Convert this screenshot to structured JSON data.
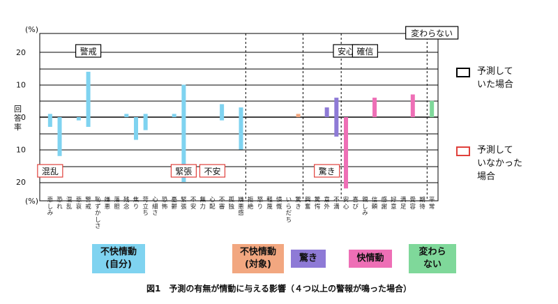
{
  "chart_data": {
    "type": "bar",
    "y_unit": "(%)",
    "y_axis_label": "回答率",
    "ylim_up": [
      0,
      20
    ],
    "ylim_down": [
      0,
      20
    ],
    "y_ticks": [
      20,
      10,
      0,
      10,
      20
    ],
    "caption": "図1　予測の有無が情動に与える影響（４つ以上の警報が鳴った場合）",
    "categories": [
      "悲しみ",
      "恐れ",
      "混乱",
      "悲哀",
      "警戒",
      "恥ずかしさ",
      "嫌悪",
      "落胆",
      "残念",
      "焦り",
      "苛立ち",
      "心細さ",
      "恐怖",
      "憂鬱",
      "緊張",
      "不安",
      "無力",
      "心配",
      "不審",
      "孤独",
      "嫌悪感",
      "拒絶",
      "怒り",
      "軽蔑",
      "憤慨",
      "いらだち",
      "驚き",
      "興奮",
      "驚愕",
      "意外",
      "不満",
      "安心",
      "喜び",
      "親しみ",
      "信頼",
      "感謝",
      "好意",
      "満足",
      "受容",
      "期待",
      "平常"
    ],
    "groups": [
      {
        "name": "不快情動\n(自分)",
        "color": "#7fd3f0",
        "from": 0,
        "to": 21
      },
      {
        "name": "不快情動\n(対象)",
        "color": "#f2a780",
        "from": 21,
        "to": 27
      },
      {
        "name": "驚き",
        "color": "#8e7ad6",
        "from": 27,
        "to": 31
      },
      {
        "name": "快情動",
        "color": "#ee6fb6",
        "from": 31,
        "to": 40
      },
      {
        "name": "変わら\nない",
        "color": "#7fd89a",
        "from": 40,
        "to": 41
      }
    ],
    "series": [
      {
        "name": "予測していた場合",
        "values": [
          1,
          0,
          0,
          0,
          14,
          0,
          0,
          0,
          1,
          0,
          1,
          0,
          0,
          1,
          10,
          0,
          0,
          0,
          4,
          0,
          3,
          0,
          0,
          0,
          0,
          0,
          1,
          0,
          0,
          3,
          6,
          0,
          0,
          0,
          6,
          0,
          0,
          0,
          7,
          0,
          5
        ]
      },
      {
        "name": "予測していなかった場合",
        "values": [
          3,
          12,
          0,
          1,
          3,
          0,
          0,
          0,
          0,
          7,
          4,
          0,
          0,
          0,
          20,
          0,
          0,
          0,
          1,
          0,
          10,
          0,
          0,
          0,
          0,
          0,
          0,
          0,
          0,
          0,
          6,
          22,
          0,
          0,
          0,
          0,
          0,
          0,
          0,
          0,
          0
        ]
      }
    ],
    "dividers_after_index": [
      20,
      26,
      30,
      39
    ],
    "annotations": [
      {
        "text": "警戒",
        "side": "top",
        "at_index": 4
      },
      {
        "text": "混乱",
        "side": "bottom",
        "at_index": 0
      },
      {
        "text": "緊張",
        "side": "bottom",
        "at_index": 14
      },
      {
        "text": "不安",
        "side": "bottom",
        "at_index": 17
      },
      {
        "text": "驚き",
        "side": "bottom",
        "at_index": 29
      },
      {
        "text": "安心",
        "side": "top",
        "at_index": 31
      },
      {
        "text": "確信",
        "side": "top",
        "at_index": 33
      },
      {
        "text": "変わらない",
        "side": "top",
        "at_index": 40
      }
    ],
    "side_legend": [
      {
        "text": "予測して\nいた場合",
        "color": "#000000"
      },
      {
        "text": "予測して\nいなかった\n場合",
        "color": "#e0403b"
      }
    ]
  }
}
